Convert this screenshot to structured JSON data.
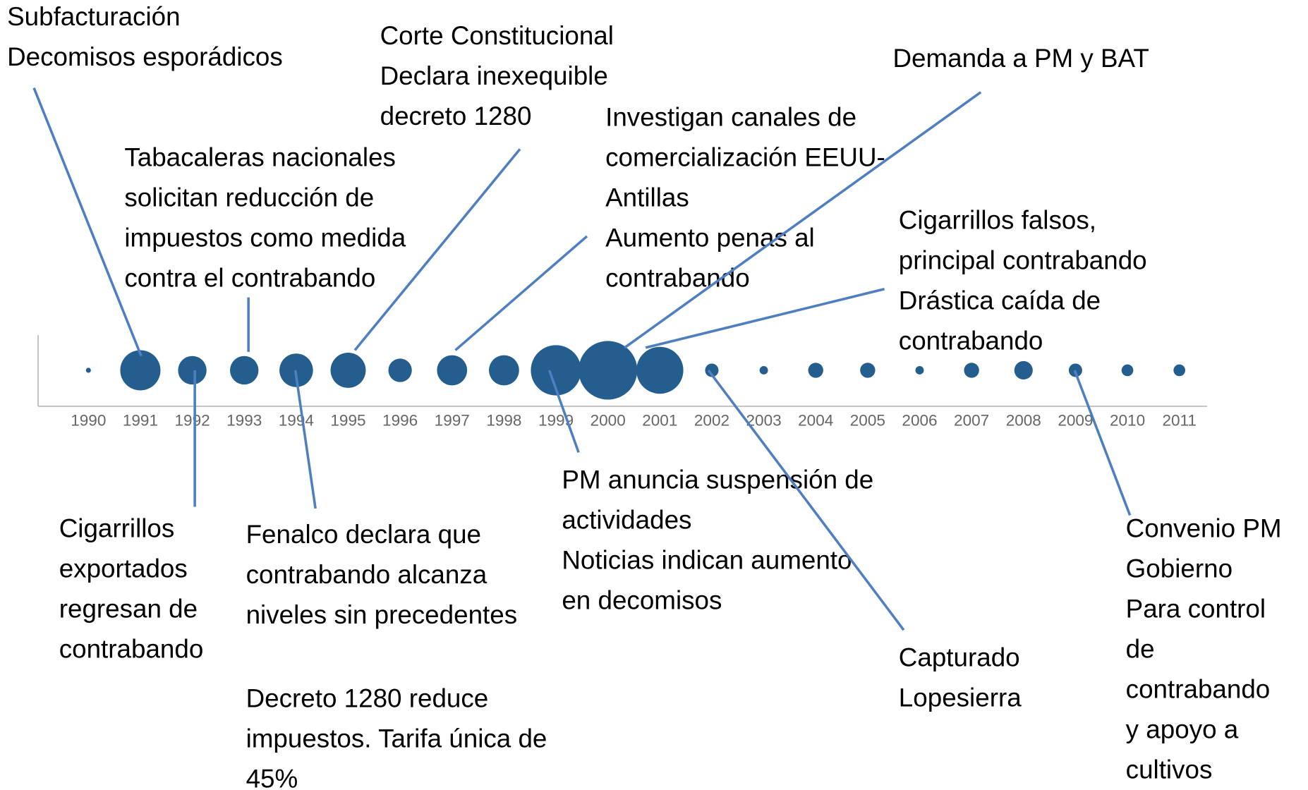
{
  "chart_data": {
    "type": "bubble-timeline",
    "color": "#245e8e",
    "categories": [
      "1990",
      "1991",
      "1992",
      "1993",
      "1994",
      "1995",
      "1996",
      "1997",
      "1998",
      "1999",
      "2000",
      "2001",
      "2002",
      "2003",
      "2004",
      "2005",
      "2006",
      "2007",
      "2008",
      "2009",
      "2010",
      "2011"
    ],
    "values": [
      3,
      24,
      17,
      17,
      20,
      21,
      14,
      18,
      18,
      30,
      35,
      28,
      8,
      5,
      9,
      9,
      5,
      9,
      11,
      8,
      7,
      7
    ],
    "annotations": [
      {
        "lines": [
          "Subfacturación",
          "Decomisos esporádicos"
        ]
      },
      {
        "lines": [
          "Corte Constitucional",
          "Declara inexequible",
          "decreto 1280"
        ]
      },
      {
        "lines": [
          "Demanda a PM y BAT"
        ]
      },
      {
        "lines": [
          "Tabacaleras nacionales",
          "solicitan reducción de",
          "impuestos como medida",
          "contra el contrabando"
        ]
      },
      {
        "lines": [
          "Investigan canales de",
          "comercialización EEUU-",
          "Antillas",
          "Aumento penas al",
          "contrabando"
        ]
      },
      {
        "lines": [
          "Cigarrillos falsos,",
          "principal contrabando",
          "Drástica caída de",
          "contrabando"
        ]
      },
      {
        "lines": [
          "Cigarrillos",
          "exportados",
          "regresan de",
          "contrabando"
        ]
      },
      {
        "lines": [
          "Fenalco declara que",
          "contrabando alcanza",
          "niveles sin precedentes"
        ]
      },
      {
        "lines": [
          "Decreto 1280 reduce",
          "impuestos. Tarifa única de",
          "45%"
        ]
      },
      {
        "lines": [
          "PM anuncia suspensión de",
          "actividades",
          "Noticias indican aumento",
          "en decomisos"
        ]
      },
      {
        "lines": [
          "Capturado",
          "Lopesierra"
        ]
      },
      {
        "lines": [
          "Convenio PM",
          "Gobierno",
          "Para control",
          "de",
          "contrabando",
          "y apoyo a",
          "cultivos"
        ]
      }
    ]
  }
}
